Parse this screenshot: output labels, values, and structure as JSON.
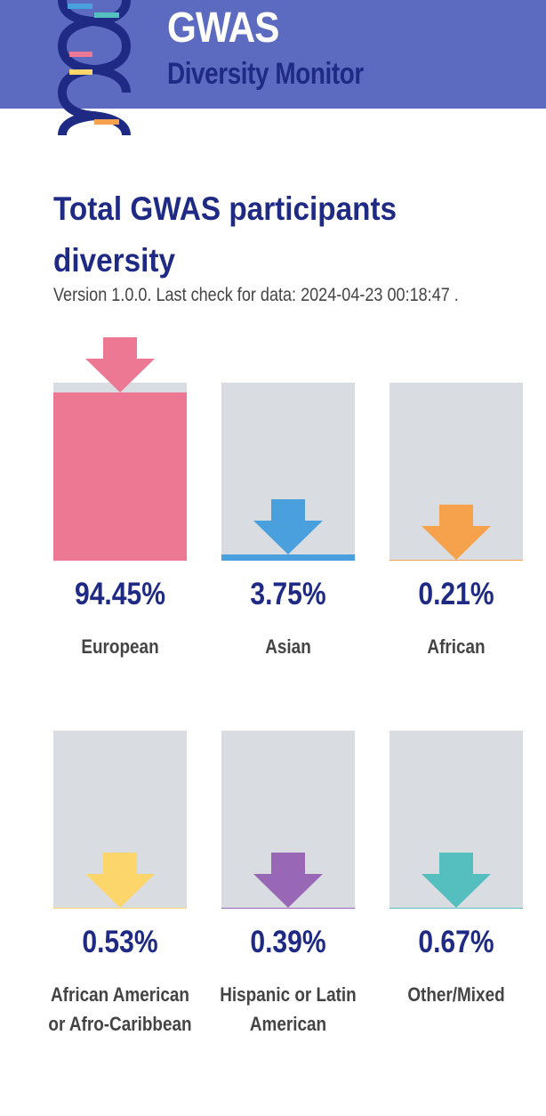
{
  "header": {
    "title": "GWAS",
    "subtitle": "Diversity Monitor",
    "background_color": "#5c6bc0",
    "subtitle_color": "#1f2a85",
    "logo_icon": "dna-helix-icon"
  },
  "main": {
    "title": "Total GWAS participants diversity",
    "version_text": "Version 1.0.0. Last check for data: 2024-04-23 00:18:47 ."
  },
  "chart_data": {
    "type": "bar",
    "categories": [
      "European",
      "Asian",
      "African",
      "African American or Afro-Caribbean",
      "Hispanic or Latin American",
      "Other/Mixed"
    ],
    "values": [
      94.45,
      3.75,
      0.21,
      0.53,
      0.39,
      0.67
    ],
    "value_labels": [
      "94.45%",
      "3.75%",
      "0.21%",
      "0.53%",
      "0.39%",
      "0.67%"
    ],
    "colors": [
      "#ec7893",
      "#4aa0dc",
      "#f6a14b",
      "#fdd66b",
      "#9867b5",
      "#55bfbf"
    ],
    "ylim": [
      0,
      100
    ],
    "unit": "%"
  }
}
